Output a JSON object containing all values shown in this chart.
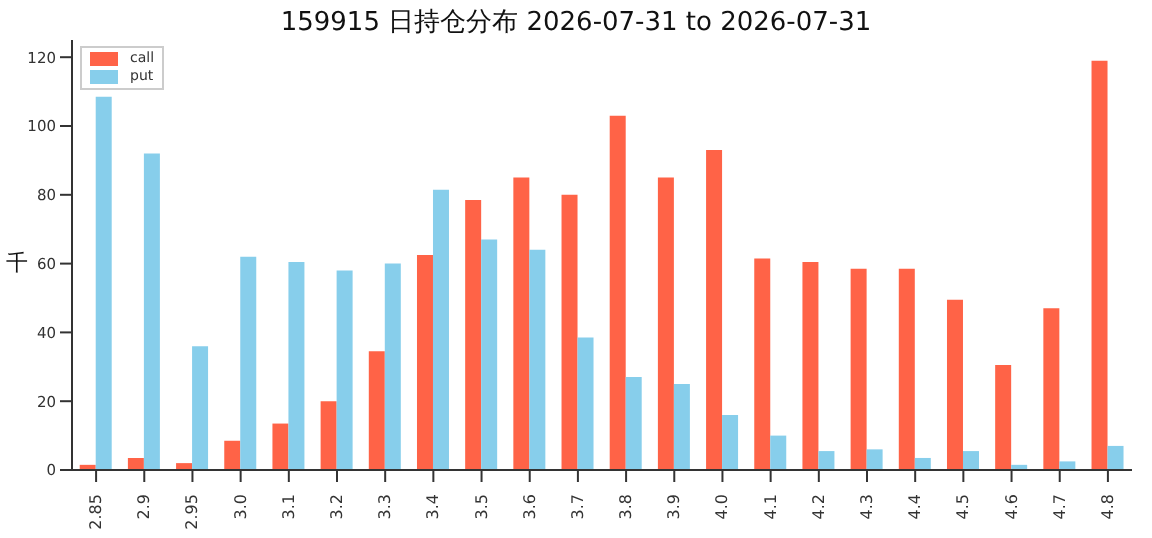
{
  "chart_data": {
    "type": "bar",
    "title": "159915 日持仓分布 2026-07-31 to 2026-07-31",
    "ylabel": "千",
    "categories": [
      "2.85",
      "2.9",
      "2.95",
      "3.0",
      "3.1",
      "3.2",
      "3.3",
      "3.4",
      "3.5",
      "3.6",
      "3.7",
      "3.8",
      "3.9",
      "4.0",
      "4.1",
      "4.2",
      "4.3",
      "4.4",
      "4.5",
      "4.6",
      "4.7",
      "4.8"
    ],
    "series": [
      {
        "name": "call",
        "color": "#ff6347",
        "values": [
          1.5,
          3.5,
          2,
          8.5,
          13.5,
          20,
          34.5,
          62.5,
          78.5,
          85,
          80,
          103,
          85,
          93,
          61.5,
          60.5,
          58.5,
          58.5,
          49.5,
          30.5,
          47,
          119
        ]
      },
      {
        "name": "put",
        "color": "#87ceeb",
        "values": [
          108.5,
          92,
          36,
          62,
          60.5,
          58,
          60,
          81.5,
          67,
          64,
          38.5,
          27,
          25,
          16,
          10,
          5.5,
          6,
          3.5,
          5.5,
          1.5,
          2.5,
          7
        ]
      }
    ],
    "ylim": [
      0,
      125
    ],
    "yticks": [
      0,
      20,
      40,
      60,
      80,
      100,
      120
    ],
    "grid": false,
    "legend": "top left"
  }
}
